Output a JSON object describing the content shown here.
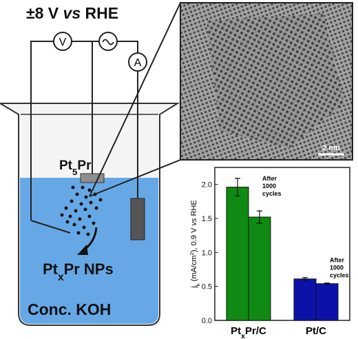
{
  "title": [
    {
      "text": "±8 V "
    },
    {
      "text": "vs",
      "style": "italic"
    },
    {
      "text": " RHE"
    }
  ],
  "meters": [
    "V",
    "A"
  ],
  "electrode": [
    {
      "text": "Pt"
    },
    {
      "text": "5",
      "style": "sub"
    },
    {
      "text": "Pr"
    }
  ],
  "product": [
    {
      "text": "Pt"
    },
    {
      "text": "x",
      "style": "sub"
    },
    {
      "text": "Pr NPs"
    }
  ],
  "electrolyte": "Conc. KOH",
  "scale_bar": "2 nm",
  "chart_data": {
    "type": "bar",
    "categories": [
      [
        {
          "text": "Pt"
        },
        {
          "text": "x",
          "style": "sub"
        },
        {
          "text": "Pr/C"
        }
      ],
      [
        {
          "text": "Pt/C"
        }
      ]
    ],
    "category_colors": [
      "#0f8a12",
      "#0c12a8"
    ],
    "series": [
      {
        "values": [
          1.96,
          0.61
        ],
        "errors": [
          0.13,
          0.02
        ]
      },
      {
        "values": [
          1.52,
          0.54
        ],
        "errors": [
          0.09,
          0.01
        ]
      }
    ],
    "annotations": [
      [
        "After",
        "1000",
        "cycles"
      ],
      [
        "After",
        "1000",
        "cycles"
      ]
    ],
    "y_label": [
      {
        "text": "j"
      },
      {
        "text": "k",
        "style": "sub"
      },
      {
        "text": " (mA/cm"
      },
      {
        "text": "2",
        "style": "sup"
      },
      {
        "text": "), 0.9 V "
      },
      {
        "text": "vs",
        "style": "italic"
      },
      {
        "text": " RHE"
      }
    ],
    "ylim": [
      0,
      2.25
    ],
    "yticks": [
      {
        "value": 0,
        "label": "0.0"
      },
      {
        "value": 0.5,
        "label": "0.5"
      },
      {
        "value": 1,
        "label": "1.0"
      },
      {
        "value": 1.5,
        "label": "1.5"
      },
      {
        "value": 2,
        "label": "2.0"
      }
    ]
  }
}
